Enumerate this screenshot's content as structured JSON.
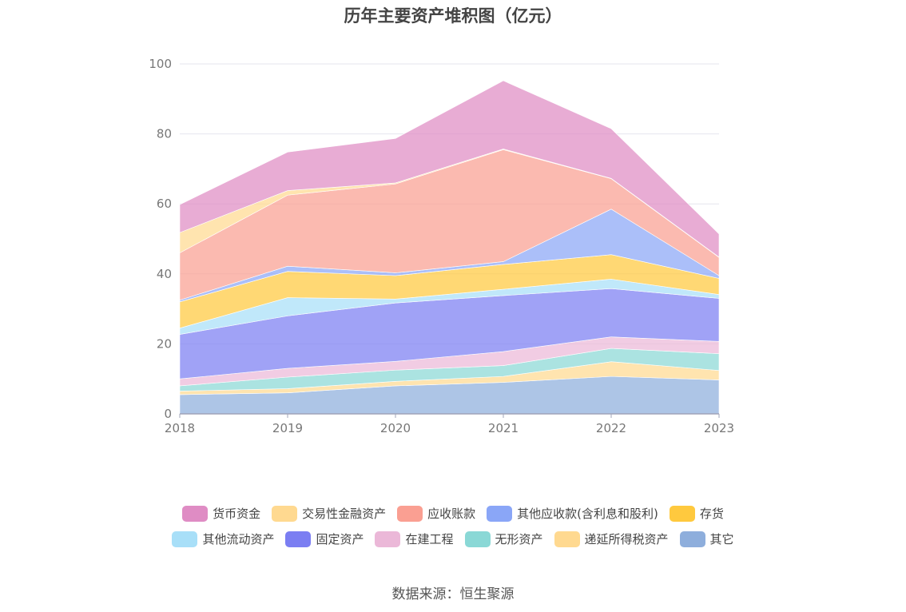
{
  "chart_data": {
    "type": "area",
    "stacked": true,
    "title": "历年主要资产堆积图（亿元）",
    "x": [
      "2018",
      "2019",
      "2020",
      "2021",
      "2022",
      "2023"
    ],
    "ylim": [
      0,
      100
    ],
    "yticks": [
      0,
      20,
      40,
      60,
      80,
      100
    ],
    "grid": true,
    "legend_position": "bottom",
    "series": [
      {
        "name": "其它",
        "color": "#8eaedc",
        "values": [
          5.5,
          6.0,
          8.0,
          9.0,
          10.7,
          9.7
        ]
      },
      {
        "name": "递延所得税资产",
        "color": "#ffd990",
        "values": [
          1.0,
          1.2,
          1.3,
          1.7,
          4.2,
          2.7
        ]
      },
      {
        "name": "无形资产",
        "color": "#8ad8d6",
        "values": [
          1.5,
          3.3,
          3.2,
          3.1,
          3.8,
          4.8
        ]
      },
      {
        "name": "在建工程",
        "color": "#ebb8d8",
        "values": [
          2.0,
          2.5,
          2.5,
          4.0,
          3.3,
          3.5
        ]
      },
      {
        "name": "固定资产",
        "color": "#7b7ef2",
        "values": [
          12.7,
          15.0,
          16.7,
          16.0,
          13.8,
          12.3
        ]
      },
      {
        "name": "其他流动资产",
        "color": "#a8dff8",
        "values": [
          1.8,
          5.2,
          1.1,
          1.8,
          2.7,
          1.1
        ]
      },
      {
        "name": "存货",
        "color": "#ffc93e",
        "values": [
          7.5,
          7.5,
          6.7,
          7.1,
          7.0,
          4.6
        ]
      },
      {
        "name": "其他应收款(含利息和股利)",
        "color": "#8aa6f7",
        "values": [
          0.5,
          1.5,
          0.8,
          0.8,
          13.0,
          0.8
        ]
      },
      {
        "name": "应收账款",
        "color": "#fa9f92",
        "values": [
          13.5,
          20.3,
          25.4,
          32.0,
          8.7,
          5.2
        ]
      },
      {
        "name": "交易性金融资产",
        "color": "#ffd990",
        "values": [
          5.8,
          1.3,
          0.3,
          0.2,
          0.1,
          0.1
        ]
      },
      {
        "name": "货币资金",
        "color": "#df8cc4",
        "values": [
          8.0,
          11.0,
          12.7,
          19.5,
          14.2,
          6.6
        ]
      }
    ]
  },
  "legend": {
    "row1": [
      {
        "label": "货币资金",
        "color": "#df8cc4"
      },
      {
        "label": "交易性金融资产",
        "color": "#ffd990"
      },
      {
        "label": "应收账款",
        "color": "#fa9f92"
      },
      {
        "label": "其他应收款(含利息和股利)",
        "color": "#8aa6f7"
      },
      {
        "label": "存货",
        "color": "#ffc93e"
      }
    ],
    "row2": [
      {
        "label": "其他流动资产",
        "color": "#a8dff8"
      },
      {
        "label": "固定资产",
        "color": "#7b7ef2"
      },
      {
        "label": "在建工程",
        "color": "#ebb8d8"
      },
      {
        "label": "无形资产",
        "color": "#8ad8d6"
      },
      {
        "label": "递延所得税资产",
        "color": "#ffd990"
      },
      {
        "label": "其它",
        "color": "#8eaedc"
      }
    ]
  },
  "source_text": "数据来源：恒生聚源"
}
